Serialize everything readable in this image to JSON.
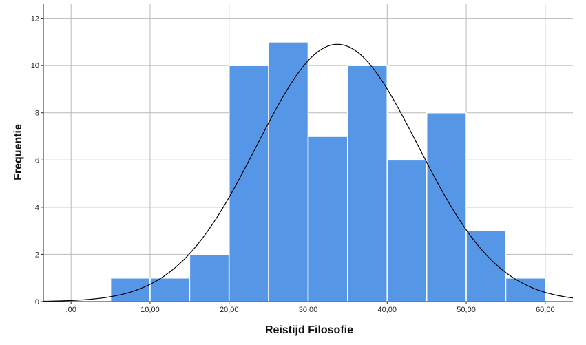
{
  "chart_data": {
    "type": "bar",
    "subtype": "histogram",
    "xlabel": "Reistijd Filosofie",
    "ylabel": "Frequentie",
    "xlim": [
      -3.5,
      63.5
    ],
    "ylim": [
      0,
      12.6
    ],
    "x_ticks": [
      0,
      10,
      20,
      30,
      40,
      50,
      60
    ],
    "x_tick_labels": [
      ",00",
      "10,00",
      "20,00",
      "30,00",
      "40,00",
      "50,00",
      "60,00"
    ],
    "y_ticks": [
      0,
      2,
      4,
      6,
      8,
      10,
      12
    ],
    "y_tick_labels": [
      "0",
      "2",
      "4",
      "6",
      "8",
      "10",
      "12"
    ],
    "bins": [
      {
        "start": 5,
        "end": 10,
        "count": 1
      },
      {
        "start": 10,
        "end": 15,
        "count": 1
      },
      {
        "start": 15,
        "end": 20,
        "count": 2
      },
      {
        "start": 20,
        "end": 25,
        "count": 10
      },
      {
        "start": 25,
        "end": 30,
        "count": 11
      },
      {
        "start": 30,
        "end": 35,
        "count": 7
      },
      {
        "start": 35,
        "end": 40,
        "count": 10
      },
      {
        "start": 40,
        "end": 45,
        "count": 6
      },
      {
        "start": 45,
        "end": 50,
        "count": 8
      },
      {
        "start": 50,
        "end": 55,
        "count": 3
      },
      {
        "start": 55,
        "end": 60,
        "count": 1
      }
    ],
    "normal_curve": {
      "mean": 33.7,
      "peak": 10.9,
      "sd": 10.2
    },
    "grid": true,
    "bar_color": "#5596e6",
    "curve_color": "#000000"
  }
}
